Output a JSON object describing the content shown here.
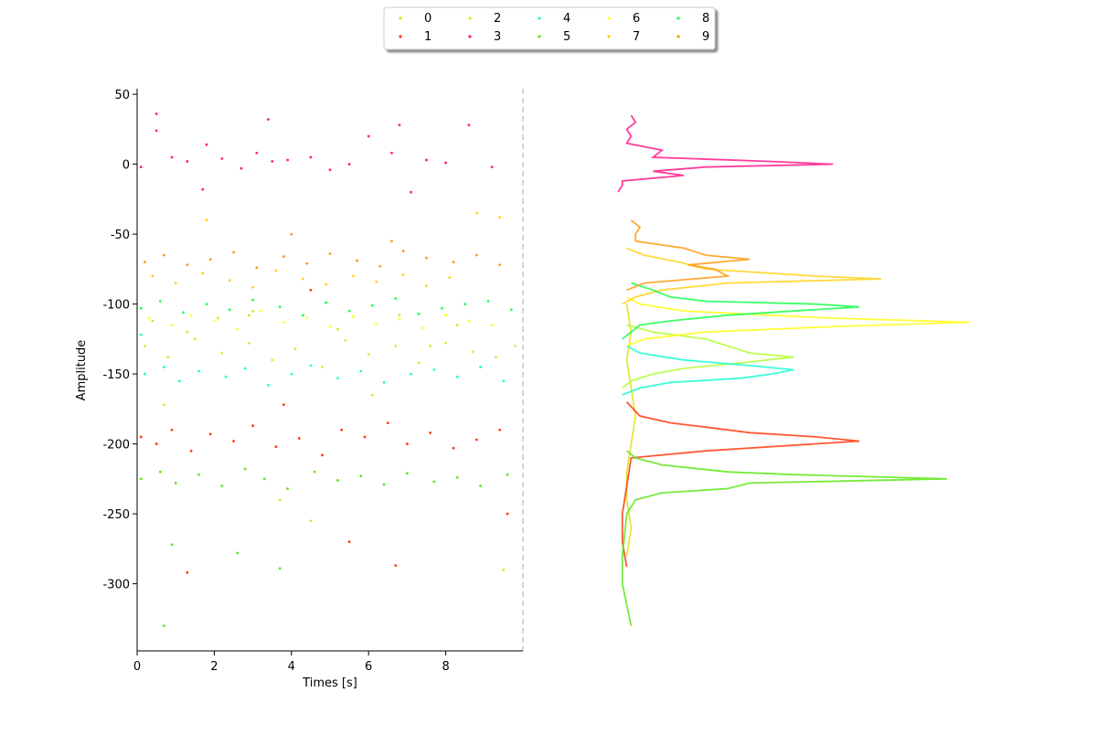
{
  "chart_data": {
    "type": "scatter",
    "xlabel": "Times [s]",
    "ylabel": "Amplitude",
    "xlim": [
      0,
      10
    ],
    "ylim": [
      -348,
      54
    ],
    "xticks": [
      0,
      2,
      4,
      6,
      8
    ],
    "yticks": [
      50,
      0,
      -50,
      -100,
      -150,
      -200,
      -250,
      -300
    ],
    "hist_xlim": [
      0,
      80
    ],
    "series": [
      {
        "name": "0",
        "color": "#dfe21a",
        "x": [
          0.4,
          1.3,
          2.1,
          3.0,
          3.7,
          4.5,
          5.2,
          6.1,
          6.8,
          7.6,
          8.3,
          9.5,
          0.7,
          1.8,
          2.9
        ],
        "y": [
          -112,
          -120,
          -110,
          -105,
          -240,
          -255,
          -118,
          -165,
          -108,
          -130,
          -115,
          -290,
          -172,
          -40,
          -108
        ],
        "hist_y": [
          -100,
          -120,
          -140,
          -160,
          -180,
          -200,
          -220,
          -240,
          -260,
          -280
        ],
        "hist_counts": [
          2,
          3,
          2,
          3,
          4,
          3,
          2,
          2,
          3,
          2
        ]
      },
      {
        "name": "1",
        "color": "#ff3a0f",
        "x": [
          0.1,
          0.5,
          0.9,
          1.4,
          1.9,
          2.5,
          3.0,
          3.6,
          4.2,
          4.8,
          5.3,
          5.9,
          6.5,
          7.0,
          7.6,
          8.2,
          8.8,
          9.4,
          3.8,
          5.5,
          1.3,
          6.7,
          9.6,
          4.5
        ],
        "y": [
          -195,
          -200,
          -190,
          -205,
          -193,
          -198,
          -187,
          -202,
          -196,
          -208,
          -190,
          -195,
          -185,
          -200,
          -192,
          -203,
          -197,
          -190,
          -172,
          -270,
          -292,
          -287,
          -250,
          -90
        ],
        "hist_y": [
          -170,
          -180,
          -185,
          -188,
          -192,
          -195,
          -198,
          -202,
          -205,
          -210,
          -250,
          -270,
          -288
        ],
        "hist_counts": [
          2,
          5,
          12,
          20,
          30,
          45,
          55,
          35,
          20,
          3,
          1,
          1,
          2
        ]
      },
      {
        "name": "2",
        "color": "#b3ff33",
        "x": [
          0.2,
          0.8,
          1.5,
          2.2,
          2.9,
          3.5,
          4.1,
          4.8,
          5.4,
          6.0,
          6.7,
          7.3,
          8.0,
          8.7,
          9.3,
          9.8
        ],
        "y": [
          -130,
          -138,
          -125,
          -135,
          -128,
          -140,
          -132,
          -145,
          -126,
          -136,
          -130,
          -142,
          -128,
          -134,
          -138,
          -130
        ],
        "hist_y": [
          -115,
          -120,
          -125,
          -130,
          -135,
          -138,
          -142,
          -146,
          -150,
          -155,
          -160
        ],
        "hist_counts": [
          2,
          8,
          20,
          25,
          30,
          40,
          28,
          15,
          8,
          3,
          1
        ]
      },
      {
        "name": "3",
        "color": "#ff1a8c",
        "x": [
          0.1,
          0.5,
          0.9,
          1.3,
          1.8,
          2.2,
          2.7,
          3.1,
          3.4,
          3.9,
          4.5,
          5.0,
          5.5,
          6.0,
          6.6,
          7.1,
          7.5,
          8.0,
          8.6,
          9.2,
          0.5,
          3.5,
          6.8,
          1.7
        ],
        "y": [
          -2,
          36,
          5,
          2,
          14,
          4,
          -3,
          8,
          32,
          3,
          5,
          -4,
          0,
          20,
          8,
          -20,
          3,
          1,
          28,
          -2,
          24,
          2,
          28,
          -18
        ],
        "hist_y": [
          35,
          30,
          25,
          20,
          15,
          10,
          5,
          2,
          0,
          -2,
          -5,
          -8,
          -12,
          -15,
          -20
        ],
        "hist_counts": [
          3,
          4,
          2,
          3,
          2,
          10,
          8,
          35,
          49,
          20,
          8,
          15,
          1,
          1,
          0
        ]
      },
      {
        "name": "4",
        "color": "#1affd1",
        "x": [
          0.2,
          0.7,
          1.1,
          1.6,
          2.3,
          2.8,
          3.4,
          4.0,
          4.5,
          5.2,
          5.8,
          6.4,
          7.1,
          7.7,
          8.3,
          8.9,
          9.5,
          0.1
        ],
        "y": [
          -150,
          -145,
          -155,
          -148,
          -152,
          -146,
          -158,
          -150,
          -144,
          -153,
          -148,
          -156,
          -150,
          -147,
          -152,
          -145,
          -155,
          -122
        ],
        "hist_y": [
          -130,
          -135,
          -140,
          -144,
          -147,
          -150,
          -153,
          -156,
          -160,
          -165
        ],
        "hist_counts": [
          2,
          5,
          15,
          30,
          40,
          35,
          28,
          12,
          5,
          1
        ]
      },
      {
        "name": "5",
        "color": "#5ee619",
        "x": [
          0.1,
          0.6,
          0.7,
          1.0,
          1.6,
          2.2,
          2.8,
          3.3,
          3.9,
          4.6,
          5.2,
          5.8,
          6.4,
          7.0,
          7.7,
          8.3,
          8.9,
          9.6,
          0.9,
          2.6,
          3.7
        ],
        "y": [
          -225,
          -220,
          -330,
          -228,
          -222,
          -230,
          -218,
          -225,
          -232,
          -220,
          -226,
          -223,
          -229,
          -221,
          -227,
          -224,
          -230,
          -222,
          -272,
          -278,
          -289
        ],
        "hist_y": [
          -205,
          -210,
          -215,
          -220,
          -222,
          -225,
          -228,
          -232,
          -235,
          -240,
          -250,
          -280,
          -300,
          -330
        ],
        "hist_counts": [
          2,
          4,
          10,
          25,
          40,
          75,
          30,
          25,
          10,
          4,
          2,
          1,
          1,
          3
        ]
      },
      {
        "name": "6",
        "color": "#ffff1a",
        "x": [
          0.3,
          0.9,
          1.4,
          2.0,
          2.6,
          3.2,
          3.8,
          4.4,
          5.0,
          5.6,
          6.2,
          6.8,
          7.4,
          8.0,
          8.6,
          9.2
        ],
        "y": [
          -110,
          -115,
          -108,
          -112,
          -118,
          -105,
          -113,
          -110,
          -116,
          -109,
          -114,
          -111,
          -117,
          -108,
          -112,
          -115
        ],
        "hist_y": [
          -95,
          -100,
          -105,
          -108,
          -110,
          -113,
          -116,
          -120,
          -125,
          -130
        ],
        "hist_counts": [
          2,
          5,
          15,
          35,
          48,
          80,
          50,
          20,
          6,
          2
        ]
      },
      {
        "name": "7",
        "color": "#ffd21a",
        "x": [
          0.4,
          1.0,
          1.7,
          2.4,
          3.0,
          3.6,
          4.3,
          4.9,
          5.6,
          6.2,
          6.9,
          7.5,
          8.1,
          8.8,
          9.4,
          1.8
        ],
        "y": [
          -80,
          -85,
          -78,
          -83,
          -88,
          -76,
          -82,
          -86,
          -80,
          -84,
          -79,
          -87,
          -81,
          -35,
          -38,
          -40
        ],
        "hist_y": [
          -60,
          -65,
          -70,
          -75,
          -80,
          -82,
          -85,
          -90,
          -95,
          -100
        ],
        "hist_counts": [
          2,
          6,
          14,
          20,
          45,
          60,
          25,
          10,
          4,
          1
        ]
      },
      {
        "name": "8",
        "color": "#1aff4d",
        "x": [
          0.1,
          0.6,
          1.2,
          1.8,
          2.4,
          3.0,
          3.7,
          4.3,
          4.9,
          5.5,
          6.1,
          6.7,
          7.3,
          7.9,
          8.5,
          9.1,
          9.7
        ],
        "y": [
          -103,
          -98,
          -106,
          -100,
          -104,
          -97,
          -102,
          -108,
          -99,
          -105,
          -101,
          -96,
          -107,
          -103,
          -100,
          -98,
          -104
        ],
        "hist_y": [
          -85,
          -90,
          -95,
          -98,
          -100,
          -102,
          -105,
          -108,
          -112,
          -115,
          -120,
          -125
        ],
        "hist_counts": [
          3,
          8,
          12,
          20,
          45,
          55,
          40,
          25,
          12,
          5,
          3,
          1
        ]
      },
      {
        "name": "9",
        "color": "#ff9a0f",
        "x": [
          0.2,
          0.7,
          1.3,
          1.9,
          2.5,
          3.1,
          3.8,
          4.4,
          5.0,
          5.7,
          6.3,
          6.9,
          7.5,
          8.2,
          8.8,
          9.4,
          4.0,
          6.6
        ],
        "y": [
          -70,
          -65,
          -72,
          -68,
          -63,
          -74,
          -66,
          -71,
          -64,
          -69,
          -73,
          -62,
          -67,
          -70,
          -65,
          -72,
          -50,
          -55
        ],
        "hist_y": [
          -40,
          -45,
          -50,
          -55,
          -60,
          -65,
          -68,
          -72,
          -75,
          -80,
          -85,
          -90
        ],
        "hist_counts": [
          3,
          5,
          4,
          4,
          15,
          20,
          30,
          16,
          22,
          25,
          6,
          2
        ]
      }
    ]
  }
}
